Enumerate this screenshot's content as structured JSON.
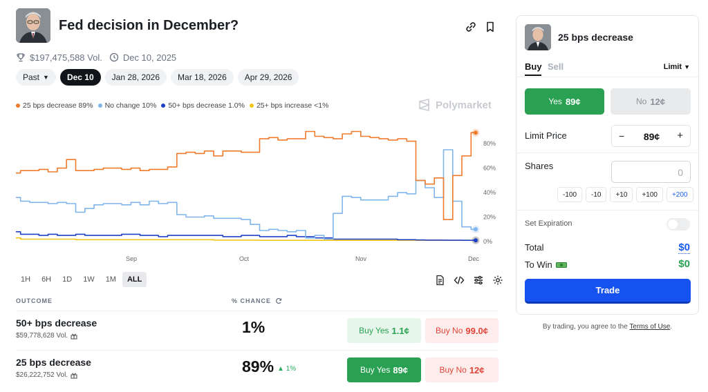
{
  "header": {
    "title": "Fed decision in December?",
    "volume": "$197,475,588 Vol.",
    "date": "Dec 10, 2025"
  },
  "date_tabs": [
    {
      "label": "Past",
      "dropdown": true
    },
    {
      "label": "Dec 10",
      "active": true
    },
    {
      "label": "Jan 28, 2026"
    },
    {
      "label": "Mar 18, 2026"
    },
    {
      "label": "Apr 29, 2026"
    }
  ],
  "legend": [
    {
      "label": "25 bps decrease 89%",
      "color": "#f07a2c"
    },
    {
      "label": "No change 10%",
      "color": "#7fb5ea"
    },
    {
      "label": "50+ bps decrease 1.0%",
      "color": "#1e3fc7"
    },
    {
      "label": "25+ bps increase <1%",
      "color": "#f2c514"
    }
  ],
  "brand": "Polymarket",
  "chart_data": {
    "type": "line",
    "x": [
      0,
      2,
      4,
      6,
      8,
      10,
      12,
      14,
      16,
      18,
      20,
      22,
      24,
      26,
      28,
      30,
      32,
      34,
      36,
      38,
      40,
      42,
      44,
      46,
      48,
      50,
      52,
      54,
      56,
      58,
      60,
      62,
      64,
      66,
      68,
      70,
      72,
      74,
      76,
      78,
      80,
      82,
      84,
      86,
      88,
      90,
      92,
      94,
      96,
      98,
      100
    ],
    "x_ticks": [
      "Sep",
      "Oct",
      "Nov",
      "Dec"
    ],
    "y_ticks": [
      "80%",
      "60%",
      "40%",
      "20%",
      "0%"
    ],
    "ylim": [
      0,
      100
    ],
    "series": [
      {
        "name": "25 bps decrease",
        "color": "#f07a2c",
        "values": [
          56,
          58,
          58,
          59,
          57,
          60,
          67,
          58,
          58,
          59,
          60,
          60,
          59,
          60,
          58,
          59,
          59,
          61,
          72,
          73,
          72,
          74,
          70,
          74,
          74,
          73,
          73,
          84,
          85,
          83,
          84,
          84,
          90,
          86,
          85,
          84,
          88,
          90,
          86,
          85,
          84,
          83,
          84,
          82,
          50,
          47,
          52,
          18,
          54,
          70,
          89
        ]
      },
      {
        "name": "No change",
        "color": "#7fb5ea",
        "values": [
          36,
          33,
          32,
          32,
          31,
          32,
          31,
          24,
          27,
          30,
          31,
          31,
          30,
          32,
          30,
          33,
          31,
          32,
          22,
          20,
          20,
          21,
          19,
          19,
          19,
          18,
          14,
          9,
          10,
          9,
          8,
          9,
          3,
          5,
          2,
          23,
          37,
          36,
          34,
          34,
          34,
          37,
          40,
          39,
          50,
          44,
          36,
          75,
          33,
          12,
          10
        ]
      },
      {
        "name": "50+ bps decrease",
        "color": "#1e3fc7",
        "values": [
          8,
          6,
          6,
          5,
          6,
          5,
          5,
          6,
          5,
          5,
          5,
          5,
          6,
          6,
          5,
          5,
          4,
          5,
          5,
          5,
          5,
          5,
          5,
          4,
          4,
          5,
          5,
          4,
          4,
          4,
          5,
          4,
          4,
          3,
          3,
          2,
          2,
          2,
          2,
          2,
          2,
          2,
          1.5,
          1.5,
          1.3,
          1.2,
          1.2,
          1.1,
          1.1,
          1,
          1
        ]
      },
      {
        "name": "25+ bps increase",
        "color": "#f2c514",
        "values": [
          3,
          2,
          2,
          2,
          2,
          2,
          2,
          1.5,
          1.5,
          1.5,
          1.5,
          1.5,
          1.5,
          1.5,
          1.5,
          1.5,
          1.5,
          1.5,
          1.5,
          1.5,
          1.5,
          1.5,
          1.2,
          1.2,
          1.2,
          1.2,
          1.2,
          1,
          1,
          1,
          1,
          1,
          1,
          1,
          1,
          1,
          1,
          1,
          1,
          1,
          1,
          1,
          1,
          1,
          1,
          1,
          1,
          1,
          1,
          1,
          1
        ]
      }
    ]
  },
  "ranges": [
    {
      "label": "1H"
    },
    {
      "label": "6H"
    },
    {
      "label": "1D"
    },
    {
      "label": "1W"
    },
    {
      "label": "1M"
    },
    {
      "label": "ALL",
      "active": true
    }
  ],
  "table": {
    "col_outcome": "OUTCOME",
    "col_chance": "% CHANCE",
    "rows": [
      {
        "name": "50+ bps decrease",
        "volume": "$59,778,628 Vol.",
        "chance": "1%",
        "change": "",
        "yes_label": "Buy Yes",
        "yes_price": "1.1¢",
        "no_label": "Buy No",
        "no_price": "99.0¢",
        "yes_strong": false
      },
      {
        "name": "25 bps decrease",
        "volume": "$26,222,752 Vol.",
        "chance": "89%",
        "change": "▲ 1%",
        "yes_label": "Buy Yes",
        "yes_price": "89¢",
        "no_label": "Buy No",
        "no_price": "12¢",
        "yes_strong": true
      }
    ]
  },
  "panel": {
    "title": "25 bps decrease",
    "buy": "Buy",
    "sell": "Sell",
    "order_type": "Limit",
    "yes_label": "Yes",
    "yes_price": "89¢",
    "no_label": "No",
    "no_price": "12¢",
    "limit_price_label": "Limit Price",
    "limit_price_value": "89¢",
    "shares_label": "Shares",
    "shares_value": "0",
    "chips": [
      "-100",
      "-10",
      "+10",
      "+100",
      "+200"
    ],
    "expiration_label": "Set Expiration",
    "total_label": "Total",
    "total_value": "$0",
    "to_win_label": "To Win",
    "to_win_value": "$0",
    "trade_label": "Trade",
    "terms_prefix": "By trading, you agree to the",
    "terms_link": "Terms of Use",
    "terms_suffix": "."
  }
}
